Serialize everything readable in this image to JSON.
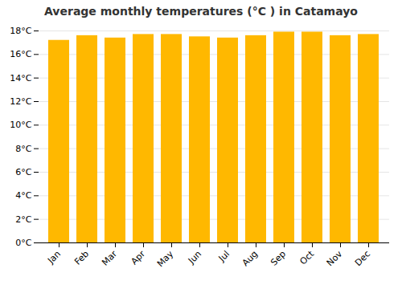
{
  "chart_data": {
    "type": "bar",
    "title": "Average monthly temperatures (°C ) in Catamayo",
    "categories": [
      "Jan",
      "Feb",
      "Mar",
      "Apr",
      "May",
      "Jun",
      "Jul",
      "Aug",
      "Sep",
      "Oct",
      "Nov",
      "Dec"
    ],
    "values": [
      17.2,
      17.6,
      17.4,
      17.7,
      17.7,
      17.5,
      17.4,
      17.6,
      17.9,
      17.9,
      17.6,
      17.7
    ],
    "color": "#FFB800",
    "ylim": [
      0,
      18
    ],
    "yticks": [
      {
        "value": 0,
        "label": "0°C"
      },
      {
        "value": 2,
        "label": "2°C"
      },
      {
        "value": 4,
        "label": "4°C"
      },
      {
        "value": 6,
        "label": "6°C"
      },
      {
        "value": 8,
        "label": "8°C"
      },
      {
        "value": 10,
        "label": "10°C"
      },
      {
        "value": 12,
        "label": "12°C"
      },
      {
        "value": 14,
        "label": "14°C"
      },
      {
        "value": 16,
        "label": "16°C"
      },
      {
        "value": 18,
        "label": "18°C"
      }
    ],
    "grid": true
  }
}
